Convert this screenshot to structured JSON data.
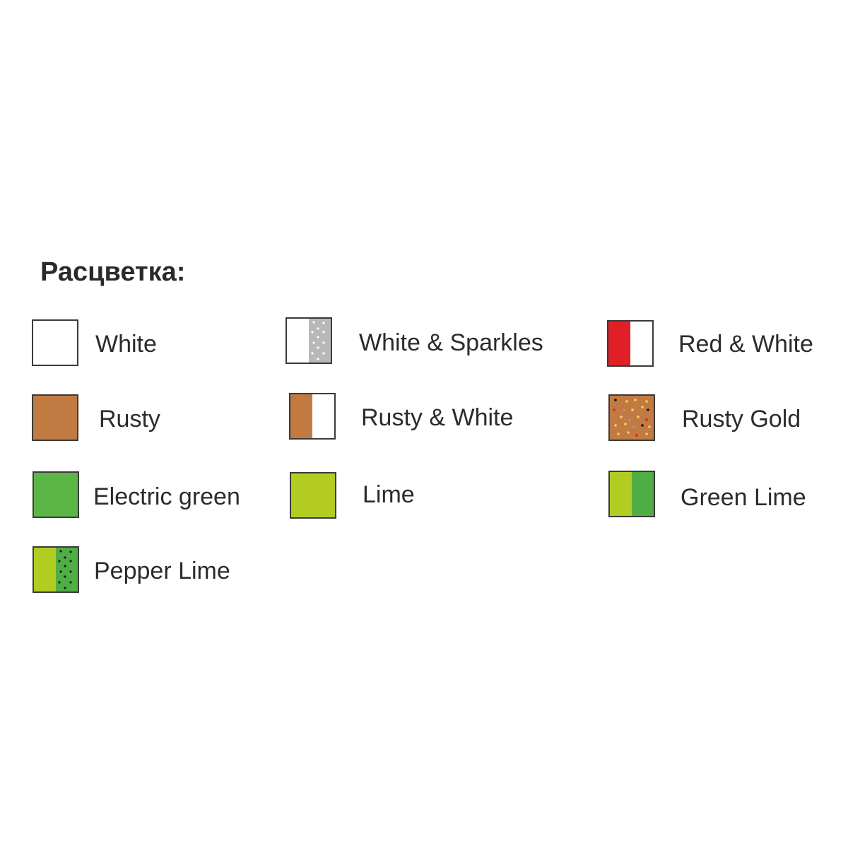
{
  "title": "Расцветка:",
  "colors": {
    "white": "#ffffff",
    "rusty": "#c27a43",
    "green": "#5cb646",
    "lime": "#b2cc22",
    "red": "#e01f27",
    "gray": "#b8b8b8",
    "border": "#3a3a3a"
  },
  "items": [
    {
      "label": "White",
      "pattern": "solid",
      "fill": [
        "#ffffff"
      ]
    },
    {
      "label": "White & Sparkles",
      "pattern": "split-dots",
      "fill": [
        "#ffffff",
        "#b8b8b8"
      ],
      "dots": "#ffffff"
    },
    {
      "label": "Red & White",
      "pattern": "split",
      "fill": [
        "#e01f27",
        "#ffffff"
      ]
    },
    {
      "label": "Rusty",
      "pattern": "solid",
      "fill": [
        "#c27a43"
      ]
    },
    {
      "label": "Rusty & White",
      "pattern": "split",
      "fill": [
        "#c27a43",
        "#ffffff"
      ]
    },
    {
      "label": "Rusty Gold",
      "pattern": "speckle",
      "fill": [
        "#c27a43"
      ],
      "dots": [
        "#f5d060",
        "#d3241f",
        "#111111",
        "#999999"
      ]
    },
    {
      "label": "Electric green",
      "pattern": "solid",
      "fill": [
        "#5cb646"
      ]
    },
    {
      "label": "Lime",
      "pattern": "solid",
      "fill": [
        "#b2cc22"
      ]
    },
    {
      "label": "Green Lime",
      "pattern": "split",
      "fill": [
        "#b2cc22",
        "#4fae44"
      ]
    },
    {
      "label": "Pepper Lime",
      "pattern": "split-dots",
      "fill": [
        "#b2cc22",
        "#4fae44"
      ],
      "dots": "#1a1a1a"
    }
  ]
}
